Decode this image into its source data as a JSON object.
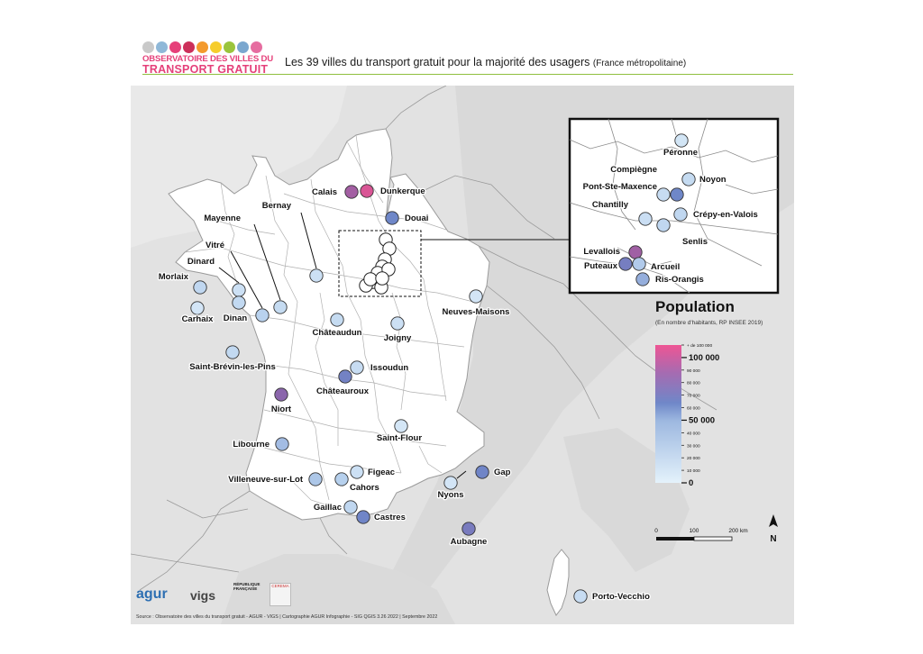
{
  "header": {
    "logo_line1": "OBSERVATOIRE DES VILLES DU",
    "logo_line2": "TRANSPORT GRATUIT",
    "logo_dot_colors": [
      "#c9c9c9",
      "#8fb8d8",
      "#e6407a",
      "#cc2f5a",
      "#f39a2d",
      "#f6cd2c",
      "#9ac43c",
      "#7aa7cf",
      "#e66da0"
    ],
    "title": "Les 39 villes du transport gratuit pour la majorité des usagers",
    "title_suffix": "(France métropolitaine)",
    "accent_color": "#8fbf3f"
  },
  "legend": {
    "title": "Population",
    "subtitle": "(En nombre d'habitants, RP INSEE 2019)",
    "ticks": [
      "+ de 100 000",
      "100 000",
      "90 000",
      "80 000",
      "70 000",
      "60 000",
      "50 000",
      "40 000",
      "30 000",
      "20 000",
      "10 000",
      "0"
    ],
    "major_ticks": [
      "100 000",
      "50 000",
      "0"
    ],
    "color_low": "#d8ecf8",
    "color_mid": "#6f87c8",
    "color_high": "#e9558f"
  },
  "scale": {
    "labels": [
      "0",
      "100",
      "200 km"
    ]
  },
  "north_label": "N",
  "cities": [
    {
      "name": "Calais",
      "population": 67000
    },
    {
      "name": "Dunkerque",
      "population": 87000
    },
    {
      "name": "Douai",
      "population": 40000
    },
    {
      "name": "Bernay",
      "population": 10000
    },
    {
      "name": "Mayenne",
      "population": 13000
    },
    {
      "name": "Vitré",
      "population": 18000
    },
    {
      "name": "Dinard",
      "population": 10000
    },
    {
      "name": "Morlaix",
      "population": 15000
    },
    {
      "name": "Carhaix",
      "population": 7000
    },
    {
      "name": "Dinan",
      "population": 14000
    },
    {
      "name": "Châteaudun",
      "population": 13000
    },
    {
      "name": "Joigny",
      "population": 10000
    },
    {
      "name": "Neuves-Maisons",
      "population": 7000
    },
    {
      "name": "Saint-Brévin-les-Pins",
      "population": 14000
    },
    {
      "name": "Issoudun",
      "population": 12000
    },
    {
      "name": "Châteauroux",
      "population": 43000
    },
    {
      "name": "Niort",
      "population": 59000
    },
    {
      "name": "Saint-Flour",
      "population": 6500
    },
    {
      "name": "Libourne",
      "population": 25000
    },
    {
      "name": "Villeneuve-sur-Lot",
      "population": 22000
    },
    {
      "name": "Figeac",
      "population": 10000
    },
    {
      "name": "Cahors",
      "population": 19000
    },
    {
      "name": "Gap",
      "population": 41000
    },
    {
      "name": "Nyons",
      "population": 7000
    },
    {
      "name": "Gaillac",
      "population": 15000
    },
    {
      "name": "Castres",
      "population": 41000
    },
    {
      "name": "Aubagne",
      "population": 47000
    },
    {
      "name": "Porto-Vecchio",
      "population": 12000
    }
  ],
  "inset": {
    "cities": [
      {
        "name": "Péronne",
        "population": 7500
      },
      {
        "name": "Compiègne",
        "population": 40000
      },
      {
        "name": "Noyon",
        "population": 13000
      },
      {
        "name": "Pont-Ste-Maxence",
        "population": 12000
      },
      {
        "name": "Chantilly",
        "population": 11000
      },
      {
        "name": "Crépy-en-Valois",
        "population": 15000
      },
      {
        "name": "Senlis",
        "population": 15000
      },
      {
        "name": "Levallois",
        "population": 66000
      },
      {
        "name": "Puteaux",
        "population": 45000
      },
      {
        "name": "Arcueil",
        "population": 21000
      },
      {
        "name": "Ris-Orangis",
        "population": 29000
      }
    ]
  },
  "footer": {
    "agur_label": "agur",
    "vigs_label": "vigs",
    "rf_label": "RÉPUBLIQUE FRANÇAISE",
    "cerema_label": "CEREMA",
    "source": "Source : Observatoire des villes du transport gratuit - AGUR - VIGS | Cartographie AGUR Infographie - SIG QGIS 3.26 2022 | Septembre 2022"
  }
}
